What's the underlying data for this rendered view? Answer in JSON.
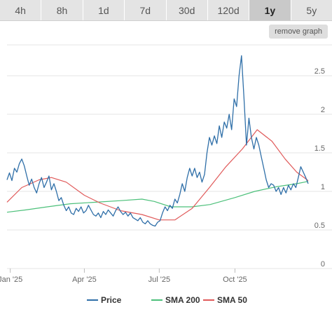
{
  "range_tabs": [
    {
      "label": "4h"
    },
    {
      "label": "8h"
    },
    {
      "label": "1d"
    },
    {
      "label": "7d"
    },
    {
      "label": "30d"
    },
    {
      "label": "120d"
    },
    {
      "label": "1y",
      "active": true
    },
    {
      "label": "5y"
    }
  ],
  "remove_graph_label": "remove graph",
  "colors": {
    "price": "#2f6fa8",
    "sma200": "#4cc07a",
    "sma50": "#e05a5a",
    "grid": "#e6e6e6"
  },
  "chart_data": {
    "type": "line",
    "x_domain": [
      "2024-12-28",
      "2025-12-29"
    ],
    "ylim": [
      0,
      2.9
    ],
    "y_ticks": [
      0,
      0.5,
      1,
      1.5,
      2,
      2.5
    ],
    "x_ticks": [
      {
        "label": "Jan '25",
        "date": "2025-01-01"
      },
      {
        "label": "Apr '25",
        "date": "2025-04-01"
      },
      {
        "label": "Jul '25",
        "date": "2025-07-01"
      },
      {
        "label": "Oct '25",
        "date": "2025-10-01"
      }
    ],
    "legend_position": "bottom",
    "series": [
      {
        "name": "Price",
        "color": "#2f6fa8",
        "points": [
          [
            "2024-12-28",
            1.15
          ],
          [
            "2024-12-31",
            1.24
          ],
          [
            "2025-01-03",
            1.14
          ],
          [
            "2025-01-06",
            1.3
          ],
          [
            "2025-01-09",
            1.25
          ],
          [
            "2025-01-12",
            1.36
          ],
          [
            "2025-01-15",
            1.42
          ],
          [
            "2025-01-18",
            1.33
          ],
          [
            "2025-01-21",
            1.2
          ],
          [
            "2025-01-24",
            1.08
          ],
          [
            "2025-01-27",
            1.16
          ],
          [
            "2025-01-30",
            1.05
          ],
          [
            "2025-02-02",
            0.98
          ],
          [
            "2025-02-05",
            1.1
          ],
          [
            "2025-02-08",
            1.18
          ],
          [
            "2025-02-11",
            1.05
          ],
          [
            "2025-02-14",
            1.12
          ],
          [
            "2025-02-17",
            1.2
          ],
          [
            "2025-02-20",
            1.02
          ],
          [
            "2025-02-23",
            1.1
          ],
          [
            "2025-02-26",
            1.0
          ],
          [
            "2025-03-01",
            0.88
          ],
          [
            "2025-03-04",
            0.92
          ],
          [
            "2025-03-07",
            0.82
          ],
          [
            "2025-03-10",
            0.75
          ],
          [
            "2025-03-13",
            0.8
          ],
          [
            "2025-03-16",
            0.72
          ],
          [
            "2025-03-19",
            0.7
          ],
          [
            "2025-03-22",
            0.78
          ],
          [
            "2025-03-25",
            0.74
          ],
          [
            "2025-03-28",
            0.8
          ],
          [
            "2025-03-31",
            0.72
          ],
          [
            "2025-04-03",
            0.75
          ],
          [
            "2025-04-06",
            0.82
          ],
          [
            "2025-04-09",
            0.76
          ],
          [
            "2025-04-12",
            0.7
          ],
          [
            "2025-04-15",
            0.68
          ],
          [
            "2025-04-18",
            0.72
          ],
          [
            "2025-04-21",
            0.66
          ],
          [
            "2025-04-24",
            0.74
          ],
          [
            "2025-04-27",
            0.7
          ],
          [
            "2025-04-30",
            0.76
          ],
          [
            "2025-05-03",
            0.72
          ],
          [
            "2025-05-06",
            0.68
          ],
          [
            "2025-05-09",
            0.75
          ],
          [
            "2025-05-12",
            0.8
          ],
          [
            "2025-05-15",
            0.74
          ],
          [
            "2025-05-18",
            0.7
          ],
          [
            "2025-05-21",
            0.73
          ],
          [
            "2025-05-24",
            0.68
          ],
          [
            "2025-05-27",
            0.72
          ],
          [
            "2025-05-30",
            0.66
          ],
          [
            "2025-06-02",
            0.64
          ],
          [
            "2025-06-05",
            0.62
          ],
          [
            "2025-06-08",
            0.66
          ],
          [
            "2025-06-11",
            0.6
          ],
          [
            "2025-06-14",
            0.58
          ],
          [
            "2025-06-17",
            0.62
          ],
          [
            "2025-06-20",
            0.58
          ],
          [
            "2025-06-23",
            0.56
          ],
          [
            "2025-06-26",
            0.55
          ],
          [
            "2025-06-29",
            0.6
          ],
          [
            "2025-07-02",
            0.62
          ],
          [
            "2025-07-05",
            0.72
          ],
          [
            "2025-07-08",
            0.8
          ],
          [
            "2025-07-11",
            0.75
          ],
          [
            "2025-07-14",
            0.82
          ],
          [
            "2025-07-17",
            0.78
          ],
          [
            "2025-07-20",
            0.9
          ],
          [
            "2025-07-23",
            0.85
          ],
          [
            "2025-07-26",
            0.96
          ],
          [
            "2025-07-29",
            1.1
          ],
          [
            "2025-08-01",
            1.0
          ],
          [
            "2025-08-04",
            1.18
          ],
          [
            "2025-08-07",
            1.3
          ],
          [
            "2025-08-10",
            1.2
          ],
          [
            "2025-08-13",
            1.3
          ],
          [
            "2025-08-16",
            1.18
          ],
          [
            "2025-08-19",
            1.25
          ],
          [
            "2025-08-22",
            1.12
          ],
          [
            "2025-08-25",
            1.22
          ],
          [
            "2025-08-28",
            1.5
          ],
          [
            "2025-08-31",
            1.7
          ],
          [
            "2025-09-03",
            1.6
          ],
          [
            "2025-09-06",
            1.72
          ],
          [
            "2025-09-09",
            1.62
          ],
          [
            "2025-09-12",
            1.85
          ],
          [
            "2025-09-15",
            1.7
          ],
          [
            "2025-09-18",
            1.9
          ],
          [
            "2025-09-21",
            1.82
          ],
          [
            "2025-09-24",
            2.0
          ],
          [
            "2025-09-27",
            1.8
          ],
          [
            "2025-09-30",
            2.2
          ],
          [
            "2025-10-03",
            2.1
          ],
          [
            "2025-10-06",
            2.5
          ],
          [
            "2025-10-09",
            2.76
          ],
          [
            "2025-10-12",
            2.2
          ],
          [
            "2025-10-15",
            1.6
          ],
          [
            "2025-10-18",
            1.95
          ],
          [
            "2025-10-21",
            1.7
          ],
          [
            "2025-10-24",
            1.55
          ],
          [
            "2025-10-27",
            1.7
          ],
          [
            "2025-10-30",
            1.6
          ],
          [
            "2025-11-02",
            1.45
          ],
          [
            "2025-11-05",
            1.3
          ],
          [
            "2025-11-08",
            1.15
          ],
          [
            "2025-11-11",
            1.05
          ],
          [
            "2025-11-14",
            1.1
          ],
          [
            "2025-11-17",
            1.08
          ],
          [
            "2025-11-20",
            1.0
          ],
          [
            "2025-11-23",
            1.05
          ],
          [
            "2025-11-26",
            0.96
          ],
          [
            "2025-11-29",
            1.05
          ],
          [
            "2025-12-02",
            0.98
          ],
          [
            "2025-12-05",
            1.08
          ],
          [
            "2025-12-08",
            1.02
          ],
          [
            "2025-12-11",
            1.1
          ],
          [
            "2025-12-14",
            1.05
          ],
          [
            "2025-12-17",
            1.18
          ],
          [
            "2025-12-20",
            1.32
          ],
          [
            "2025-12-23",
            1.25
          ],
          [
            "2025-12-26",
            1.18
          ],
          [
            "2025-12-29",
            1.1
          ]
        ]
      },
      {
        "name": "SMA 200",
        "color": "#4cc07a",
        "points": [
          [
            "2024-12-28",
            0.73
          ],
          [
            "2025-01-20",
            0.76
          ],
          [
            "2025-02-15",
            0.8
          ],
          [
            "2025-03-15",
            0.84
          ],
          [
            "2025-04-15",
            0.86
          ],
          [
            "2025-05-15",
            0.88
          ],
          [
            "2025-06-10",
            0.9
          ],
          [
            "2025-06-25",
            0.87
          ],
          [
            "2025-07-15",
            0.8
          ],
          [
            "2025-08-10",
            0.8
          ],
          [
            "2025-09-01",
            0.83
          ],
          [
            "2025-10-01",
            0.92
          ],
          [
            "2025-10-25",
            1.0
          ],
          [
            "2025-11-20",
            1.06
          ],
          [
            "2025-12-15",
            1.1
          ],
          [
            "2025-12-29",
            1.13
          ]
        ]
      },
      {
        "name": "SMA 50",
        "color": "#e05a5a",
        "points": [
          [
            "2024-12-28",
            0.86
          ],
          [
            "2025-01-15",
            1.05
          ],
          [
            "2025-02-05",
            1.15
          ],
          [
            "2025-02-20",
            1.18
          ],
          [
            "2025-03-10",
            1.12
          ],
          [
            "2025-04-01",
            0.95
          ],
          [
            "2025-04-20",
            0.85
          ],
          [
            "2025-05-15",
            0.75
          ],
          [
            "2025-06-10",
            0.7
          ],
          [
            "2025-07-01",
            0.63
          ],
          [
            "2025-07-20",
            0.63
          ],
          [
            "2025-08-10",
            0.78
          ],
          [
            "2025-08-31",
            1.05
          ],
          [
            "2025-09-20",
            1.32
          ],
          [
            "2025-10-10",
            1.55
          ],
          [
            "2025-10-28",
            1.8
          ],
          [
            "2025-11-15",
            1.65
          ],
          [
            "2025-12-01",
            1.42
          ],
          [
            "2025-12-15",
            1.25
          ],
          [
            "2025-12-29",
            1.14
          ]
        ]
      }
    ]
  }
}
